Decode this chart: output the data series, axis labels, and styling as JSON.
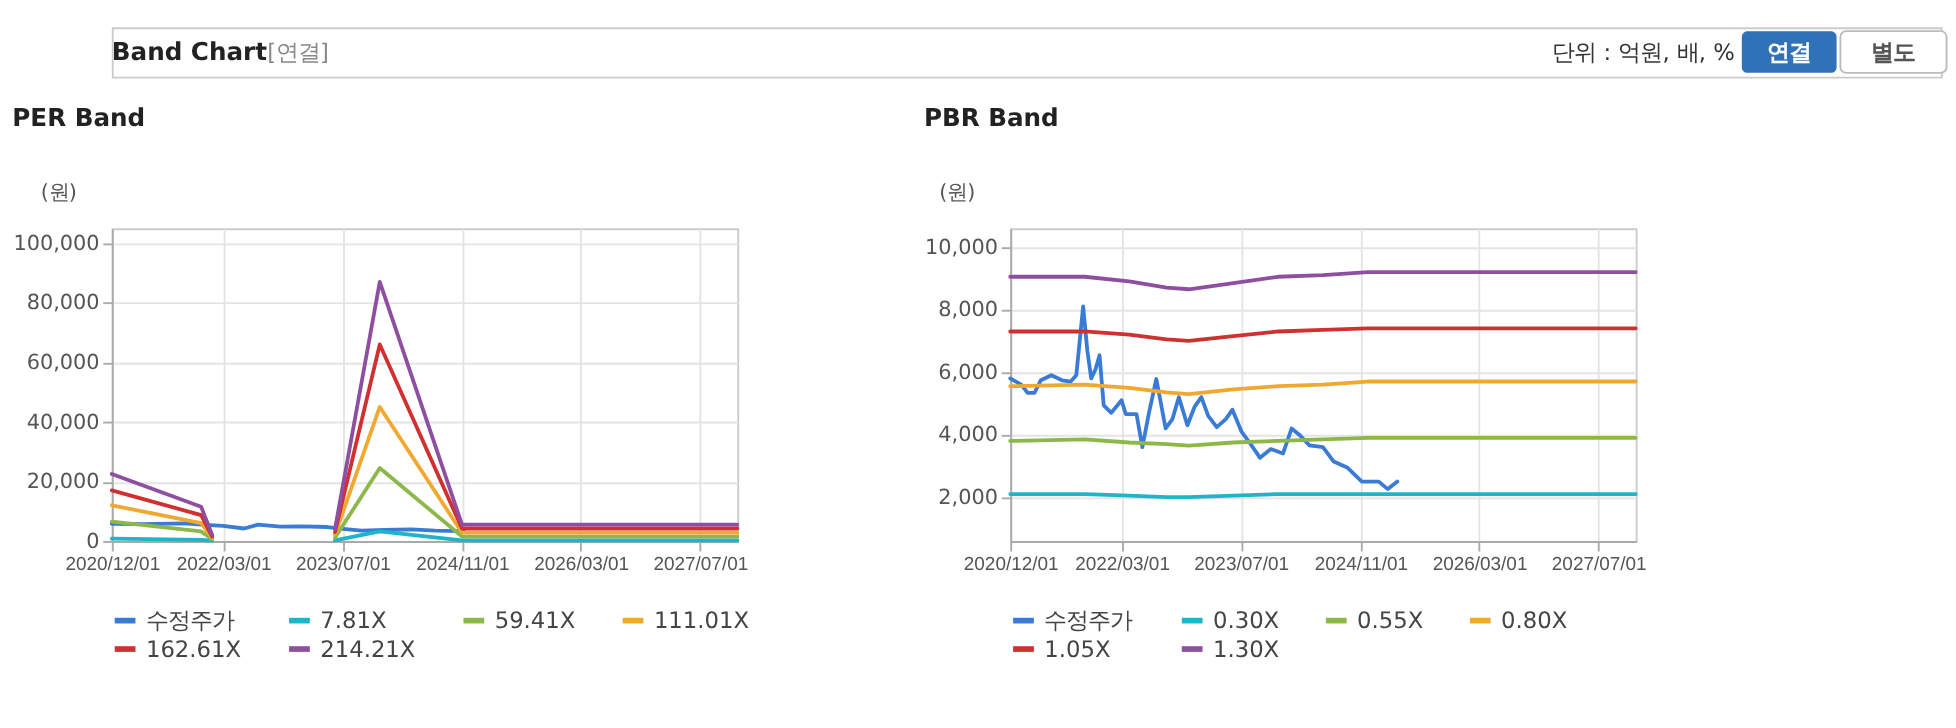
{
  "chart_data": [
    {
      "type": "line",
      "title": "PER Band",
      "ylabel": "(원)",
      "annotations": [
        "Band Chart",
        "[연결]",
        "단위 : 억원, 배, %",
        "연결",
        "별도"
      ],
      "xlim": [
        "2020-12-01",
        "2027-12-01"
      ],
      "xticks": [
        {
          "value": "2020-12-01",
          "label": "2020/12/01"
        },
        {
          "value": "2022-03-01",
          "label": "2022/03/01"
        },
        {
          "value": "2023-07-01",
          "label": "2023/07/01"
        },
        {
          "value": "2024-11-01",
          "label": "2024/11/01"
        },
        {
          "value": "2026-03-01",
          "label": "2026/03/01"
        },
        {
          "value": "2027-07-01",
          "label": "2027/07/01"
        }
      ],
      "ylim": [
        0,
        105000
      ],
      "yticks": [
        0,
        {
          "value": 20000,
          "label": "20,000"
        },
        {
          "value": 40000,
          "label": "40,000"
        },
        {
          "value": 60000,
          "label": "60,000"
        },
        {
          "value": 80000,
          "label": "80,000"
        },
        {
          "value": 100000,
          "label": "100,000"
        }
      ],
      "grid": true,
      "legend": "bottom",
      "series": [
        {
          "name": "수정주가",
          "color": "#3a7bd5",
          "x": [
            "2020-12-01",
            "2021-04-05",
            "2021-09-25",
            "2021-12-01",
            "2022-03-01",
            "2022-05-25",
            "2022-07-21",
            "2022-10-21",
            "2023-01-21",
            "2023-05-01",
            "2023-07-04",
            "2023-09-18",
            "2023-12-21",
            "2024-04-07",
            "2024-07-15",
            "2024-11-07"
          ],
          "values": [
            5800,
            5700,
            5900,
            5500,
            5100,
            4200,
            5500,
            4800,
            4900,
            4700,
            4100,
            3500,
            3700,
            3900,
            3500,
            3300
          ]
        },
        {
          "name": "7.81X",
          "color": "#1fb4c8",
          "x": [
            "2020-12-01",
            "2021-12-01",
            "2022-01-15",
            "2022-06-01",
            "2023-06-01",
            "2023-12-01",
            "2024-11-01",
            "2027-12-01"
          ],
          "values": [
            800,
            400,
            100,
            null,
            200,
            3200,
            200,
            200
          ]
        },
        {
          "name": "59.41X",
          "color": "#8cb84a",
          "x": [
            "2020-12-01",
            "2021-12-01",
            "2022-01-15",
            "2022-06-01",
            "2023-06-01",
            "2023-12-01",
            "2024-11-01",
            "2027-12-01"
          ],
          "values": [
            6500,
            3200,
            600,
            null,
            1100,
            24500,
            1500,
            1500
          ]
        },
        {
          "name": "111.01X",
          "color": "#f0a830",
          "x": [
            "2020-12-01",
            "2021-12-01",
            "2022-01-15",
            "2022-06-01",
            "2023-06-01",
            "2023-12-01",
            "2024-11-01",
            "2027-12-01"
          ],
          "values": [
            12000,
            6000,
            1000,
            null,
            2100,
            45000,
            2800,
            2800
          ]
        },
        {
          "name": "162.61X",
          "color": "#d03030",
          "x": [
            "2020-12-01",
            "2021-12-01",
            "2022-01-15",
            "2022-06-01",
            "2023-06-01",
            "2023-12-01",
            "2024-11-01",
            "2027-12-01"
          ],
          "values": [
            17000,
            8700,
            1500,
            null,
            3000,
            66000,
            4200,
            4200
          ]
        },
        {
          "name": "214.21X",
          "color": "#8e4fa0",
          "x": [
            "2020-12-01",
            "2021-12-01",
            "2022-01-15",
            "2022-06-01",
            "2023-06-01",
            "2023-12-01",
            "2024-11-01",
            "2027-12-01"
          ],
          "values": [
            22500,
            11500,
            2000,
            null,
            4000,
            87000,
            5500,
            5500
          ]
        }
      ]
    },
    {
      "type": "line",
      "title": "PBR Band",
      "ylabel": "(원)",
      "xlim": [
        "2020-12-01",
        "2027-12-01"
      ],
      "xticks": [
        {
          "value": "2020-12-01",
          "label": "2020/12/01"
        },
        {
          "value": "2022-03-01",
          "label": "2022/03/01"
        },
        {
          "value": "2023-07-01",
          "label": "2023/07/01"
        },
        {
          "value": "2024-11-01",
          "label": "2024/11/01"
        },
        {
          "value": "2026-03-01",
          "label": "2026/03/01"
        },
        {
          "value": "2027-07-01",
          "label": "2027/07/01"
        }
      ],
      "ylim": [
        600,
        10600
      ],
      "yticks": [
        {
          "value": 2000,
          "label": "2,000"
        },
        {
          "value": 4000,
          "label": "4,000"
        },
        {
          "value": 6000,
          "label": "6,000"
        },
        {
          "value": 8000,
          "label": "8,000"
        },
        {
          "value": 10000,
          "label": "10,000"
        }
      ],
      "grid": true,
      "legend": "bottom",
      "series": [
        {
          "name": "수정주가",
          "color": "#3a7bd5",
          "x": [
            "2020-12-01",
            "2021-01-15",
            "2021-02-10",
            "2021-03-10",
            "2021-04-05",
            "2021-05-18",
            "2021-07-01",
            "2021-08-05",
            "2021-08-28",
            "2021-09-25",
            "2021-10-12",
            "2021-10-28",
            "2021-11-15",
            "2021-12-01",
            "2021-12-18",
            "2022-01-18",
            "2022-03-01",
            "2022-03-18",
            "2022-05-01",
            "2022-05-25",
            "2022-06-21",
            "2022-07-21",
            "2022-08-28",
            "2022-09-25",
            "2022-10-21",
            "2022-11-25",
            "2022-12-25",
            "2023-01-21",
            "2023-02-18",
            "2023-03-25",
            "2023-05-01",
            "2023-05-28",
            "2023-07-04",
            "2023-08-07",
            "2023-09-18",
            "2023-11-01",
            "2023-12-21",
            "2024-01-25",
            "2024-02-25",
            "2024-04-07",
            "2024-06-01",
            "2024-07-15",
            "2024-09-10",
            "2024-11-07",
            "2025-01-15",
            "2025-02-21",
            "2025-04-01"
          ],
          "values": [
            5800,
            5600,
            5340,
            5340,
            5740,
            5900,
            5740,
            5700,
            5900,
            8100,
            6700,
            5800,
            6100,
            6540,
            4940,
            4700,
            5100,
            4660,
            4660,
            3600,
            4700,
            5780,
            4200,
            4500,
            5200,
            4300,
            4900,
            5200,
            4600,
            4240,
            4500,
            4800,
            4100,
            3740,
            3260,
            3540,
            3400,
            4200,
            4000,
            3660,
            3600,
            3140,
            2940,
            2500,
            2500,
            2260,
            2500
          ]
        },
        {
          "name": "0.30X",
          "color": "#1fb4c8",
          "x": [
            "2020-12-01",
            "2021-10-01",
            "2022-04-01",
            "2022-09-01",
            "2022-12-01",
            "2023-06-01",
            "2023-12-01",
            "2024-06-01",
            "2024-12-01",
            "2027-12-01"
          ],
          "values": [
            2100,
            2100,
            2050,
            2000,
            2000,
            2050,
            2100,
            2100,
            2100,
            2100
          ]
        },
        {
          "name": "0.55X",
          "color": "#8cb84a",
          "x": [
            "2020-12-01",
            "2021-10-01",
            "2022-04-01",
            "2022-09-01",
            "2022-12-01",
            "2023-06-01",
            "2023-12-01",
            "2024-06-01",
            "2024-12-01",
            "2027-12-01"
          ],
          "values": [
            3800,
            3850,
            3750,
            3700,
            3650,
            3750,
            3800,
            3850,
            3900,
            3900
          ]
        },
        {
          "name": "0.80X",
          "color": "#f0a830",
          "x": [
            "2020-12-01",
            "2021-10-01",
            "2022-04-01",
            "2022-09-01",
            "2022-12-01",
            "2023-06-01",
            "2023-12-01",
            "2024-06-01",
            "2024-12-01",
            "2027-12-01"
          ],
          "values": [
            5550,
            5600,
            5500,
            5350,
            5300,
            5450,
            5550,
            5600,
            5700,
            5700
          ]
        },
        {
          "name": "1.05X",
          "color": "#d03030",
          "x": [
            "2020-12-01",
            "2021-10-01",
            "2022-04-01",
            "2022-09-01",
            "2022-12-01",
            "2023-06-01",
            "2023-12-01",
            "2024-06-01",
            "2024-12-01",
            "2027-12-01"
          ],
          "values": [
            7300,
            7300,
            7200,
            7050,
            7000,
            7150,
            7300,
            7350,
            7400,
            7400
          ]
        },
        {
          "name": "1.30X",
          "color": "#8e4fa0",
          "x": [
            "2020-12-01",
            "2021-10-01",
            "2022-04-01",
            "2022-09-01",
            "2022-12-01",
            "2023-06-01",
            "2023-12-01",
            "2024-06-01",
            "2024-12-01",
            "2027-12-01"
          ],
          "values": [
            9050,
            9050,
            8900,
            8700,
            8650,
            8850,
            9050,
            9100,
            9200,
            9200
          ]
        }
      ]
    }
  ]
}
